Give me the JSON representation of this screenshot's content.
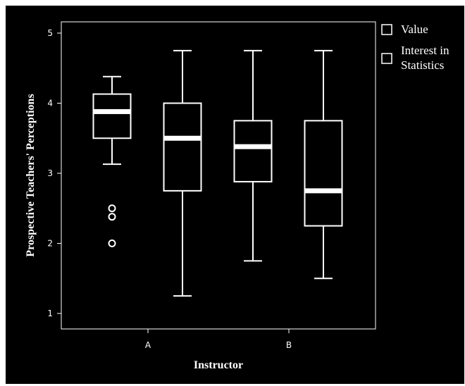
{
  "chart_data": {
    "type": "boxplot",
    "xlabel": "Instructor",
    "ylabel": "Prospective Teachers' Perceptions",
    "ylim": [
      0.98,
      5.2
    ],
    "yticks": [
      1,
      2,
      3,
      4,
      5
    ],
    "categories": [
      "A",
      "B"
    ],
    "legend_position": "right",
    "legend_labels": [
      "Value",
      "Interest in Statistics"
    ],
    "series": [
      {
        "name": "Value",
        "boxes": [
          {
            "category": "A",
            "whisker_low": 3.13,
            "q1": 3.5,
            "median": 3.88,
            "q3": 4.13,
            "whisker_high": 4.38,
            "outliers": [
              2.5,
              2.38,
              2.0
            ]
          },
          {
            "category": "B",
            "whisker_low": 1.75,
            "q1": 2.88,
            "median": 3.38,
            "q3": 3.75,
            "whisker_high": 4.75,
            "outliers": []
          }
        ]
      },
      {
        "name": "Interest in Statistics",
        "boxes": [
          {
            "category": "A",
            "whisker_low": 1.25,
            "q1": 2.75,
            "median": 3.5,
            "q3": 4.0,
            "whisker_high": 4.75,
            "outliers": []
          },
          {
            "category": "B",
            "whisker_low": 1.5,
            "q1": 2.25,
            "median": 2.75,
            "q3": 3.75,
            "whisker_high": 4.75,
            "outliers": []
          }
        ]
      }
    ],
    "colors": {
      "background": "#000000",
      "stroke": "#ffffff"
    }
  }
}
